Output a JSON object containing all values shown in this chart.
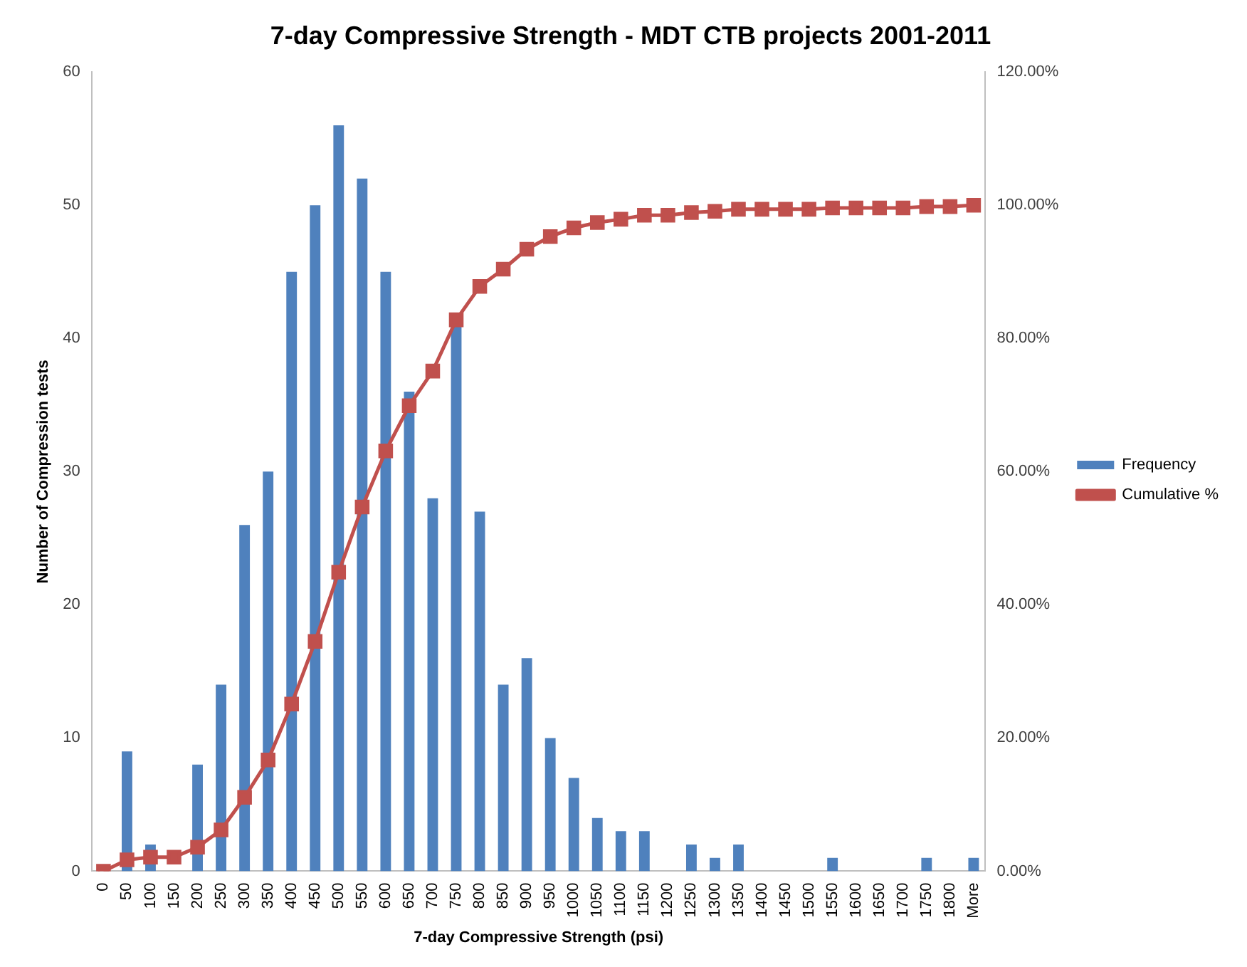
{
  "chart_data": {
    "type": "bar",
    "title": "7-day Compressive Strength - MDT CTB projects 2001-2011",
    "xlabel": "7-day Compressive Strength (psi)",
    "ylabel": "Number of Compression tests",
    "categories": [
      "0",
      "50",
      "100",
      "150",
      "200",
      "250",
      "300",
      "350",
      "400",
      "450",
      "500",
      "550",
      "600",
      "650",
      "700",
      "750",
      "800",
      "850",
      "900",
      "950",
      "1000",
      "1050",
      "1100",
      "1150",
      "1200",
      "1250",
      "1300",
      "1350",
      "1400",
      "1450",
      "1500",
      "1550",
      "1600",
      "1650",
      "1700",
      "1750",
      "1800",
      "More"
    ],
    "series": [
      {
        "name": "Frequency",
        "color": "#4f81bd",
        "values": [
          0,
          9,
          2,
          0,
          8,
          14,
          26,
          30,
          45,
          50,
          56,
          52,
          45,
          36,
          28,
          41,
          27,
          14,
          16,
          10,
          7,
          4,
          3,
          3,
          0,
          2,
          1,
          2,
          0,
          0,
          0,
          1,
          0,
          0,
          0,
          1,
          0,
          1
        ]
      },
      {
        "name": "Cumulative %",
        "type": "line",
        "axis": "y2",
        "color": "#c0504d",
        "marker": "square",
        "values": [
          0,
          1.7,
          2.1,
          2.1,
          3.6,
          6.2,
          11.1,
          16.7,
          25.1,
          34.5,
          44.9,
          54.7,
          63.1,
          69.9,
          75.1,
          82.8,
          87.8,
          90.4,
          93.4,
          95.3,
          96.6,
          97.4,
          97.9,
          98.5,
          98.5,
          98.9,
          99.1,
          99.4,
          99.4,
          99.4,
          99.4,
          99.6,
          99.6,
          99.6,
          99.6,
          99.8,
          99.8,
          100
        ]
      }
    ],
    "ylim": [
      0,
      60
    ],
    "yticks": [
      0,
      10,
      20,
      30,
      40,
      50,
      60
    ],
    "y2lim": [
      0,
      120
    ],
    "y2ticks": [
      {
        "value": 0,
        "label": "0.00%"
      },
      {
        "value": 20,
        "label": "20.00%"
      },
      {
        "value": 40,
        "label": "40.00%"
      },
      {
        "value": 60,
        "label": "60.00%"
      },
      {
        "value": 80,
        "label": "80.00%"
      },
      {
        "value": 100,
        "label": "100.00%"
      },
      {
        "value": 120,
        "label": "120.00%"
      }
    ],
    "legend": "right"
  }
}
